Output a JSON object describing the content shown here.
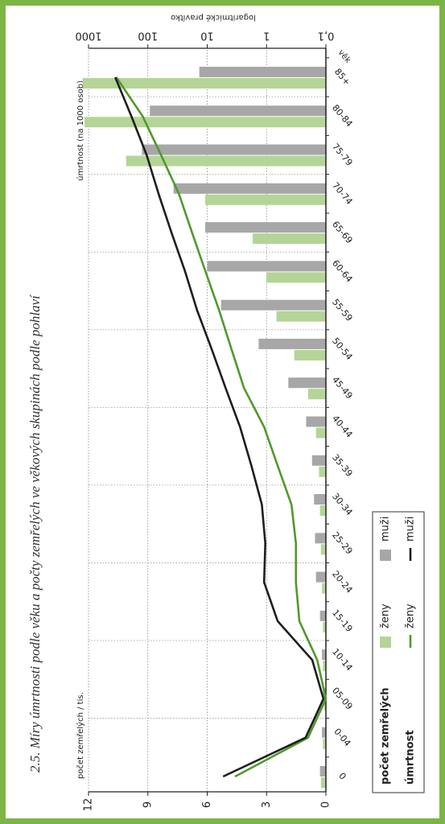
{
  "chart_data": {
    "type": "bar",
    "title": "2.5. Míry úmrtnosti podle věku a počty zemřelých ve věkových skupinách podle pohlaví",
    "xlabel": "věk",
    "ylabel": "počet zemřelých / tis.",
    "y2label": "úmrtnost (na 1000 osob)",
    "y2note": "logaritmické pravítko",
    "categories": [
      "0",
      "0-04",
      "05-09",
      "10-14",
      "15-19",
      "20-24",
      "25-29",
      "30-34",
      "35-39",
      "40-44",
      "45-49",
      "50-54",
      "55-59",
      "60-64",
      "65-69",
      "70-74",
      "75-79",
      "80-84",
      "85+"
    ],
    "ylim": [
      0,
      12
    ],
    "yticks": [
      0,
      3,
      6,
      9,
      12
    ],
    "y2lim": [
      0.1,
      1000
    ],
    "y2ticks": [
      {
        "value": 0.1,
        "label": "0,1"
      },
      1,
      10,
      100,
      1000
    ],
    "y2log": true,
    "grid": true,
    "legend_titles": {
      "bar": "počet zemřelých",
      "line": "úmrtnost"
    },
    "series": [
      {
        "name": "ženy",
        "type": "bar",
        "color": "#b4d597",
        "values": [
          0.25,
          0.15,
          0.1,
          0.15,
          0.15,
          0.2,
          0.25,
          0.3,
          0.35,
          0.5,
          0.9,
          1.6,
          2.5,
          3.0,
          3.7,
          6.1,
          10.1,
          12.2,
          12.3
        ]
      },
      {
        "name": "muži",
        "type": "bar",
        "color": "#a7a7a7",
        "values": [
          0.3,
          0.2,
          0.15,
          0.2,
          0.3,
          0.5,
          0.55,
          0.6,
          0.7,
          1.0,
          1.9,
          3.4,
          5.3,
          6.0,
          6.1,
          7.7,
          9.3,
          8.9,
          6.4
        ]
      },
      {
        "name": "ženy",
        "type": "line",
        "axis": "y2",
        "color": "#4f9a2c",
        "values": [
          3.4,
          0.2,
          0.1,
          0.14,
          0.28,
          0.32,
          0.32,
          0.38,
          0.65,
          1.1,
          2.4,
          3.9,
          6.3,
          10.7,
          18,
          30,
          60,
          123,
          340
        ]
      },
      {
        "name": "muži",
        "type": "line",
        "axis": "y2",
        "color": "#1e1e1e",
        "values": [
          5.4,
          0.22,
          0.11,
          0.17,
          0.65,
          1.1,
          1.05,
          1.2,
          1.8,
          2.8,
          4.9,
          8.4,
          14.8,
          23.6,
          40,
          66,
          105,
          190,
          355
        ]
      }
    ]
  }
}
